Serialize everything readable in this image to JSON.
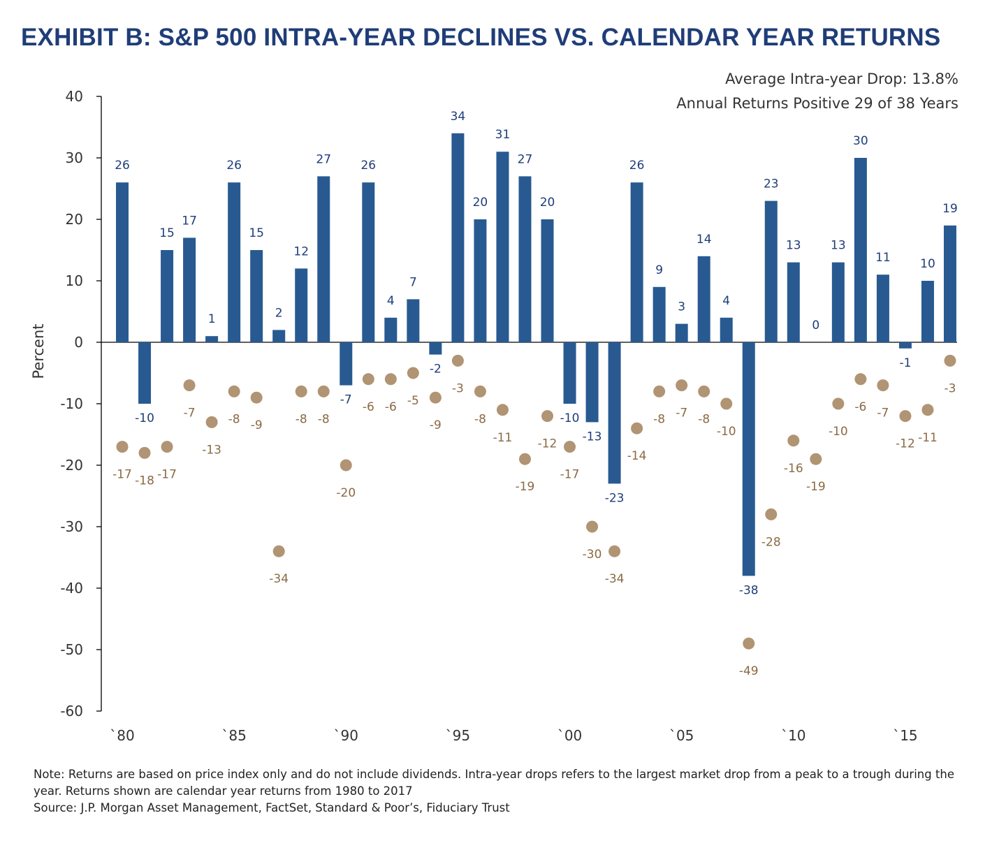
{
  "title": "EXHIBIT B: S&P 500 INTRA-YEAR DECLINES VS. CALENDAR YEAR RETURNS",
  "stats": {
    "avg_drop": "Average Intra-year Drop: 13.8%",
    "positive_years": "Annual Returns Positive 29 of 38 Years"
  },
  "notes": {
    "note": "Note: Returns are based on price index only and do not include dividends. Intra-year drops refers to the largest market drop from a peak to a trough during the year. Returns shown are calendar year returns from 1980 to 2017",
    "source": "Source: J.P. Morgan Asset Management, FactSet, Standard & Poor’s, Fiduciary Trust"
  },
  "colors": {
    "bar": "#285a91",
    "bar_label": "#1f3d78",
    "dot": "#b09473",
    "dot_label": "#8a6a43",
    "axis": "#000000",
    "tick_text": "#333333"
  },
  "chart_data": {
    "type": "bar",
    "ylabel": "Percent",
    "ylim": [
      -60,
      40
    ],
    "yticks": [
      40,
      30,
      20,
      10,
      0,
      -10,
      -20,
      -30,
      -40,
      -50,
      -60
    ],
    "x": [
      1980,
      1981,
      1982,
      1983,
      1984,
      1985,
      1986,
      1987,
      1988,
      1989,
      1990,
      1991,
      1992,
      1993,
      1994,
      1995,
      1996,
      1997,
      1998,
      1999,
      2000,
      2001,
      2002,
      2003,
      2004,
      2005,
      2006,
      2007,
      2008,
      2009,
      2010,
      2011,
      2012,
      2013,
      2014,
      2015,
      2016,
      2017
    ],
    "xtick_labels": [
      {
        "year": 1980,
        "label": "`80"
      },
      {
        "year": 1985,
        "label": "`85"
      },
      {
        "year": 1990,
        "label": "`90"
      },
      {
        "year": 1995,
        "label": "`95"
      },
      {
        "year": 2000,
        "label": "`00"
      },
      {
        "year": 2005,
        "label": "`05"
      },
      {
        "year": 2010,
        "label": "`10"
      },
      {
        "year": 2015,
        "label": "`15"
      }
    ],
    "series": [
      {
        "kind": "bar",
        "values": [
          26,
          -10,
          15,
          17,
          1,
          26,
          15,
          2,
          12,
          27,
          -7,
          26,
          4,
          7,
          -2,
          34,
          20,
          31,
          27,
          20,
          -10,
          -13,
          -23,
          26,
          9,
          3,
          14,
          4,
          -38,
          23,
          13,
          0,
          13,
          30,
          11,
          -1,
          10,
          19
        ]
      },
      {
        "kind": "scatter",
        "values": [
          -17,
          -18,
          -17,
          -7,
          -13,
          -8,
          -9,
          -34,
          -8,
          -8,
          -20,
          -6,
          -6,
          -5,
          -9,
          -3,
          -8,
          -11,
          -19,
          -12,
          -17,
          -30,
          -34,
          -14,
          -8,
          -7,
          -8,
          -10,
          -49,
          -28,
          -16,
          -19,
          -10,
          -6,
          -7,
          -12,
          -11,
          -3
        ]
      }
    ]
  }
}
